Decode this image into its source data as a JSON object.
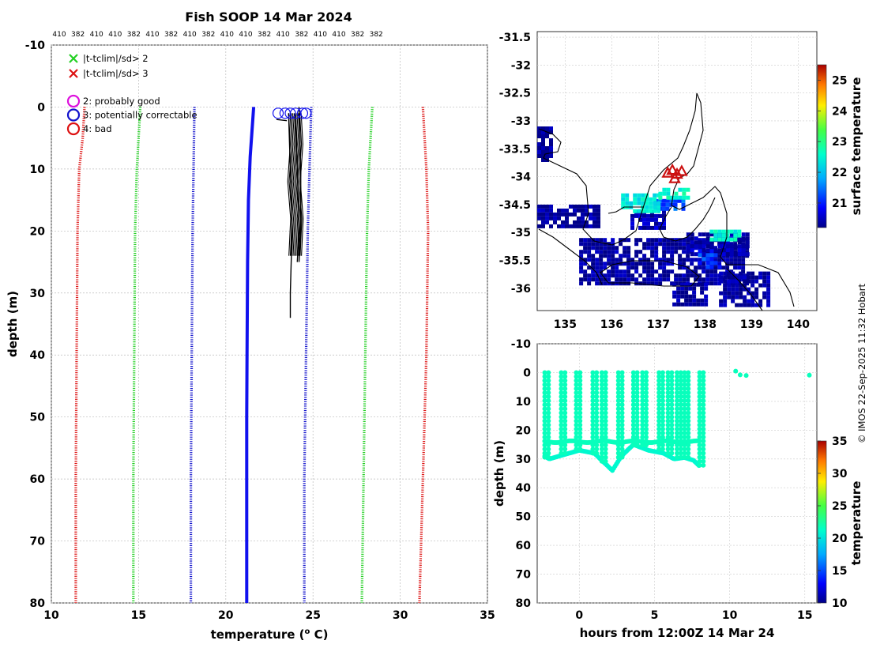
{
  "figure": {
    "title": "Fish SOOP 14 Mar 2024",
    "credit": "© IMOS 22-Sep-2025 11:32 Hobart"
  },
  "profile_ids": [
    "410",
    "382",
    "410",
    "410",
    "382",
    "410",
    "382",
    "410",
    "382",
    "410",
    "410",
    "382",
    "410",
    "382",
    "410",
    "410",
    "382",
    "382"
  ],
  "legend": {
    "cross_items": [
      {
        "label": "|t-tclim|/sd> 2",
        "color": "#22d022"
      },
      {
        "label": "|t-tclim|/sd> 3",
        "color": "#dd1111"
      }
    ],
    "flag_items": [
      {
        "label": "2: probably good",
        "color": "#dd11dd"
      },
      {
        "label": "3: potentially correctable",
        "color": "#1111cc"
      },
      {
        "label": "4: bad",
        "color": "#dd1111"
      }
    ]
  },
  "colorbars": {
    "surface": {
      "label": "surface temperature",
      "ticks": [
        "21",
        "22",
        "23",
        "24",
        "25"
      ],
      "range": [
        20.2,
        25.5
      ]
    },
    "temperature": {
      "label": "temperature",
      "ticks": [
        "10",
        "15",
        "20",
        "25",
        "30",
        "35"
      ],
      "range": [
        10,
        35
      ]
    }
  },
  "chart_data": [
    {
      "type": "line",
      "title": "Fish SOOP 14 Mar 2024",
      "xlabel": "temperature (° C)",
      "ylabel": "depth (m)",
      "xlim": [
        10,
        35
      ],
      "ylim": [
        80,
        -10
      ],
      "y_reversed": true,
      "grid": true,
      "x_ticks": [
        10,
        15,
        20,
        25,
        30,
        35
      ],
      "y_ticks": [
        -10,
        0,
        10,
        20,
        30,
        40,
        50,
        60,
        70,
        80
      ],
      "series": [
        {
          "role": "climatology_minus_3sd",
          "color": "#dd1111",
          "points": [
            [
              11.9,
              0
            ],
            [
              11.8,
              5
            ],
            [
              11.6,
              10
            ],
            [
              11.5,
              20
            ],
            [
              11.45,
              40
            ],
            [
              11.4,
              60
            ],
            [
              11.4,
              80
            ]
          ]
        },
        {
          "role": "climatology_minus_2sd",
          "color": "#22d022",
          "points": [
            [
              15.1,
              0
            ],
            [
              15.0,
              5
            ],
            [
              14.9,
              10
            ],
            [
              14.8,
              20
            ],
            [
              14.75,
              40
            ],
            [
              14.7,
              60
            ],
            [
              14.7,
              80
            ]
          ]
        },
        {
          "role": "climatology_minus_1sd",
          "color": "#1111cc",
          "points": [
            [
              18.2,
              0
            ],
            [
              18.15,
              10
            ],
            [
              18.1,
              20
            ],
            [
              18.05,
              40
            ],
            [
              18.0,
              60
            ],
            [
              18.0,
              80
            ]
          ]
        },
        {
          "role": "profile",
          "color": "#1111ee",
          "points": [
            [
              21.6,
              0
            ],
            [
              21.55,
              2
            ],
            [
              21.4,
              8
            ],
            [
              21.3,
              15
            ],
            [
              21.25,
              25
            ],
            [
              21.22,
              40
            ],
            [
              21.2,
              50
            ],
            [
              21.2,
              80
            ]
          ]
        },
        {
          "role": "profile",
          "color": "#000000",
          "points": [
            [
              23.6,
              1
            ],
            [
              23.7,
              10
            ],
            [
              23.8,
              20
            ],
            [
              23.7,
              30
            ],
            [
              23.7,
              34
            ]
          ]
        },
        {
          "role": "profile",
          "color": "#000000",
          "points": [
            [
              24.0,
              1
            ],
            [
              24.1,
              10
            ],
            [
              24.2,
              20
            ],
            [
              24.1,
              25
            ]
          ]
        },
        {
          "role": "profile",
          "color": "#000000",
          "points": [
            [
              24.2,
              0
            ],
            [
              24.3,
              10
            ],
            [
              24.3,
              20
            ],
            [
              24.2,
              25
            ]
          ]
        },
        {
          "role": "climatology_plus_1sd",
          "color": "#1111cc",
          "points": [
            [
              24.9,
              0
            ],
            [
              24.8,
              10
            ],
            [
              24.7,
              20
            ],
            [
              24.6,
              40
            ],
            [
              24.5,
              60
            ],
            [
              24.5,
              80
            ]
          ]
        },
        {
          "role": "climatology_plus_2sd",
          "color": "#22d022",
          "points": [
            [
              28.4,
              0
            ],
            [
              28.3,
              5
            ],
            [
              28.2,
              10
            ],
            [
              28.1,
              20
            ],
            [
              28.0,
              40
            ],
            [
              27.9,
              60
            ],
            [
              27.8,
              80
            ]
          ]
        },
        {
          "role": "climatology_plus_3sd",
          "color": "#dd1111",
          "points": [
            [
              31.3,
              0
            ],
            [
              31.4,
              5
            ],
            [
              31.5,
              10
            ],
            [
              31.6,
              20
            ],
            [
              31.5,
              40
            ],
            [
              31.3,
              60
            ],
            [
              31.1,
              80
            ]
          ]
        }
      ],
      "flag3_markers": [
        [
          23.0,
          1
        ],
        [
          23.4,
          1
        ],
        [
          23.7,
          1
        ],
        [
          24.0,
          1
        ],
        [
          24.4,
          1
        ],
        [
          24.6,
          1
        ]
      ]
    },
    {
      "type": "heatmap",
      "xlim": [
        134.4,
        140.4
      ],
      "ylim": [
        -36.4,
        -31.4
      ],
      "x_ticks": [
        135,
        136,
        137,
        138,
        139,
        140
      ],
      "y_ticks": [
        -31.5,
        -32,
        -32.5,
        -33,
        -33.5,
        -34,
        -34.5,
        -35,
        -35.5,
        -36
      ],
      "value_label": "surface temperature",
      "color_range": [
        20.2,
        25.5
      ],
      "sst_patches": [
        {
          "lon": [
            134.4,
            134.7
          ],
          "lat": [
            -33.7,
            -33.1
          ],
          "value": 20.3
        },
        {
          "lon": [
            134.4,
            135.7
          ],
          "lat": [
            -34.9,
            -34.5
          ],
          "value": 20.3
        },
        {
          "lon": [
            135.3,
            138.9
          ],
          "lat": [
            -35.9,
            -35.1
          ],
          "value": 20.3
        },
        {
          "lon": [
            137.6,
            138.9
          ],
          "lat": [
            -35.4,
            -35.0
          ],
          "value": 20.4
        },
        {
          "lon": [
            138.3,
            139.4
          ],
          "lat": [
            -36.3,
            -35.7
          ],
          "value": 20.3
        },
        {
          "lon": [
            137.3,
            138.0
          ],
          "lat": [
            -36.3,
            -35.9
          ],
          "value": 20.3
        },
        {
          "lon": [
            136.4,
            137.1
          ],
          "lat": [
            -34.9,
            -34.6
          ],
          "value": 20.5
        },
        {
          "lon": [
            136.9,
            137.5
          ],
          "lat": [
            -34.4,
            -34.6
          ],
          "value": 21.3
        },
        {
          "lon": [
            136.2,
            137.0
          ],
          "lat": [
            -34.3,
            -34.6
          ],
          "value": 22.4
        },
        {
          "lon": [
            137.0,
            137.6
          ],
          "lat": [
            -34.2,
            -34.4
          ],
          "value": 22.6
        },
        {
          "lon": [
            137.85,
            138.3
          ],
          "lat": [
            -35.6,
            -35.3
          ],
          "value": 21.2
        },
        {
          "lon": [
            138.1,
            138.7
          ],
          "lat": [
            -35.1,
            -34.95
          ],
          "value": 22.5
        }
      ],
      "surface_obs": [
        {
          "lon": 137.2,
          "lat": -33.93,
          "value": 24.9
        },
        {
          "lon": 137.3,
          "lat": -33.88,
          "value": 24.7
        },
        {
          "lon": 137.4,
          "lat": -33.95,
          "value": 25.0
        },
        {
          "lon": 137.5,
          "lat": -33.9,
          "value": 24.8
        },
        {
          "lon": 137.35,
          "lat": -34.03,
          "value": 24.9
        }
      ]
    },
    {
      "type": "scatter",
      "xlabel": "hours from 12:00Z 14 Mar 24",
      "ylabel": "depth (m)",
      "xlim": [
        -2.8,
        15.8
      ],
      "ylim": [
        80,
        -10
      ],
      "y_reversed": true,
      "grid": true,
      "x_ticks": [
        0,
        5,
        10,
        15
      ],
      "y_ticks": [
        -10,
        0,
        10,
        20,
        30,
        40,
        50,
        60,
        70,
        80
      ],
      "value_label": "temperature",
      "color_range": [
        10,
        35
      ],
      "upper_layer_temp": 21.7,
      "deep_layer_temp": 21.0,
      "cast_starts": [
        -2.3,
        -1.2,
        -0.2,
        0.9,
        1.5,
        2.6,
        3.6,
        4.2,
        5.3,
        5.9,
        6.5,
        7.0,
        8.0
      ],
      "surface_track": {
        "x": [
          -2.3,
          8.0
        ],
        "depth": 24.0
      },
      "deep_track": [
        [
          -2.3,
          29
        ],
        [
          -2.0,
          30
        ],
        [
          -1.0,
          28.5
        ],
        [
          0.0,
          27
        ],
        [
          1.0,
          28
        ],
        [
          1.6,
          31
        ],
        [
          2.2,
          34
        ],
        [
          2.8,
          29
        ],
        [
          3.6,
          25
        ],
        [
          4.6,
          27
        ],
        [
          5.6,
          28
        ],
        [
          6.3,
          30
        ],
        [
          7.0,
          29.5
        ],
        [
          7.6,
          30.5
        ],
        [
          8.0,
          32.5
        ]
      ],
      "isolated_points": [
        [
          10.4,
          -0.5
        ],
        [
          10.7,
          0.8
        ],
        [
          11.1,
          1.0
        ],
        [
          15.3,
          0.9
        ]
      ]
    }
  ]
}
